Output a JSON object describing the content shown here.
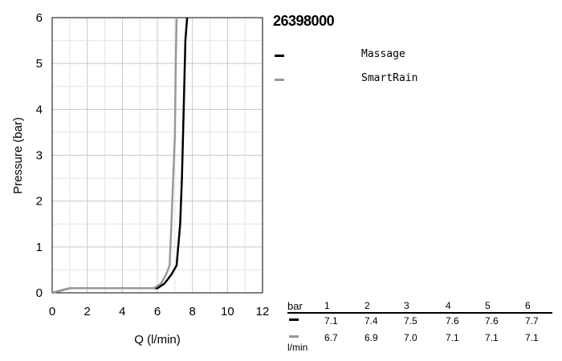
{
  "chart_data": {
    "type": "line",
    "title": "26398000",
    "xlabel": "Q (l/min)",
    "ylabel": "Pressure (bar)",
    "xlim": [
      0,
      12
    ],
    "ylim": [
      0,
      6
    ],
    "xticks": [
      "0",
      "2",
      "4",
      "6",
      "8",
      "10",
      "12"
    ],
    "yticks": [
      "0",
      "1",
      "2",
      "3",
      "4",
      "5",
      "6"
    ],
    "grid": true,
    "legend_position": "right",
    "series": [
      {
        "name": "Massage",
        "color": "#000000",
        "points": [
          [
            0,
            0
          ],
          [
            1,
            0.1
          ],
          [
            6.0,
            0.1
          ],
          [
            6.4,
            0.2
          ],
          [
            6.8,
            0.4
          ],
          [
            7.1,
            0.6
          ],
          [
            7.3,
            1.5
          ],
          [
            7.4,
            2.5
          ],
          [
            7.5,
            4.0
          ],
          [
            7.6,
            5.5
          ],
          [
            7.7,
            6.0
          ]
        ]
      },
      {
        "name": "SmartRain",
        "color": "#999999",
        "points": [
          [
            0,
            0
          ],
          [
            1,
            0.1
          ],
          [
            5.8,
            0.1
          ],
          [
            6.2,
            0.2
          ],
          [
            6.5,
            0.4
          ],
          [
            6.7,
            0.6
          ],
          [
            6.8,
            1.5
          ],
          [
            6.9,
            2.5
          ],
          [
            7.0,
            3.4
          ],
          [
            7.05,
            5.0
          ],
          [
            7.1,
            6.0
          ]
        ]
      }
    ]
  },
  "table": {
    "unit_top": "bar",
    "unit_bottom": "l/min",
    "pressures": [
      "1",
      "2",
      "3",
      "4",
      "5",
      "6"
    ],
    "rows": [
      {
        "color": "#000000",
        "values": [
          "7.1",
          "7.4",
          "7.5",
          "7.6",
          "7.6",
          "7.7"
        ]
      },
      {
        "color": "#999999",
        "values": [
          "6.7",
          "6.9",
          "7.0",
          "7.1",
          "7.1",
          "7.1"
        ]
      }
    ]
  }
}
